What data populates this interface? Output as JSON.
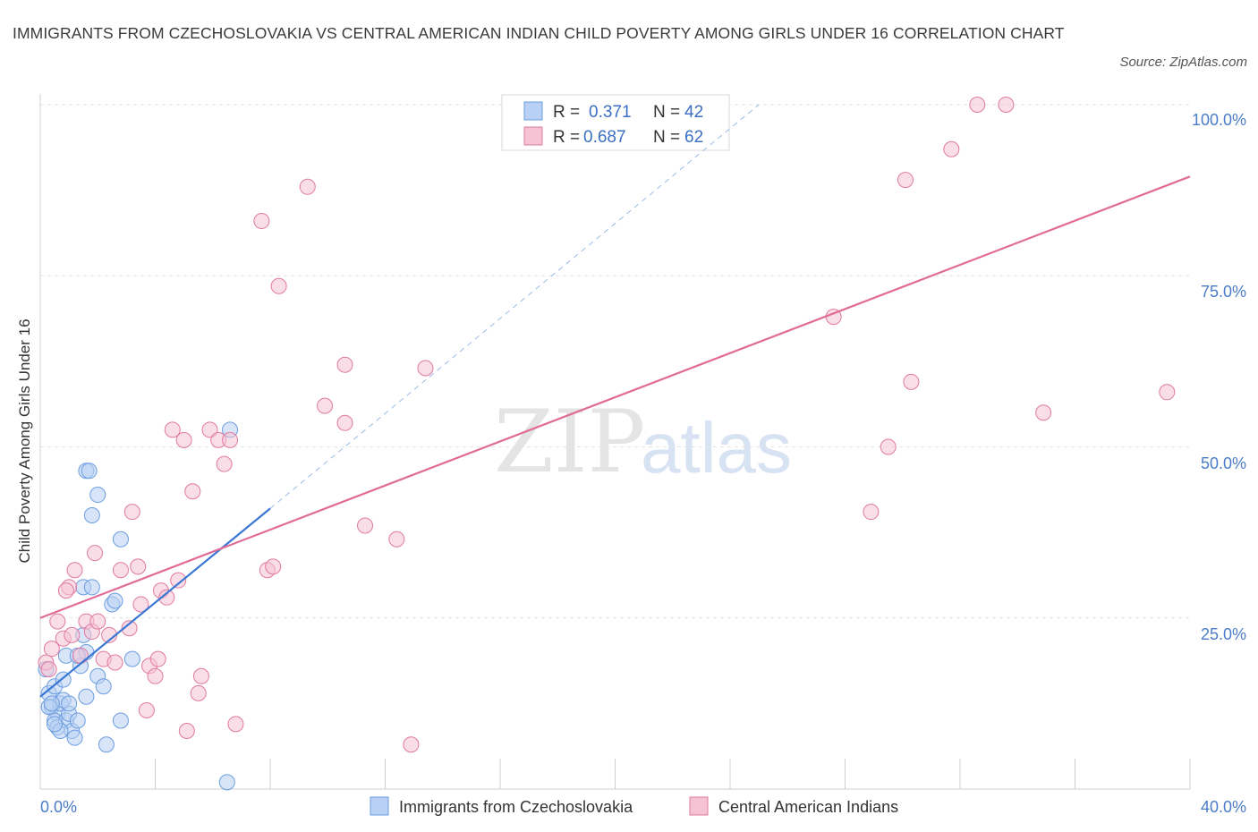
{
  "chart_data": {
    "type": "scatter",
    "title": "IMMIGRANTS FROM CZECHOSLOVAKIA VS CENTRAL AMERICAN INDIAN CHILD POVERTY AMONG GIRLS UNDER 16 CORRELATION CHART",
    "source": "Source: ZipAtlas.com",
    "ylabel": "Child Poverty Among Girls Under 16",
    "x_tick_labels": [
      "0.0%",
      "40.0%"
    ],
    "y_tick_labels": [
      "100.0%",
      "75.0%",
      "50.0%",
      "25.0%"
    ],
    "xlim": [
      0,
      40
    ],
    "ylim": [
      0,
      100
    ],
    "grid": true,
    "legend_placement": "top-center",
    "watermark": {
      "zip": "ZIP",
      "atlas": "atlas"
    },
    "legend": {
      "r_label": "R =",
      "n_label": "N =",
      "entries": [
        {
          "r": "0.371",
          "n": "42"
        },
        {
          "r": "0.687",
          "n": "62"
        }
      ]
    },
    "series": [
      {
        "name": "Immigrants from Czechoslovakia",
        "color": "#6b9de0",
        "fill": "#b8d0f3",
        "trend_line": {
          "x0": 0,
          "y0": 13.5,
          "x1": 8.0,
          "y1": 41.0,
          "dash_x1": 25,
          "dash_y1": 100
        },
        "points": [
          [
            0.2,
            17.5
          ],
          [
            0.3,
            14.0
          ],
          [
            0.4,
            12.0
          ],
          [
            0.5,
            15.0
          ],
          [
            0.6,
            11.0
          ],
          [
            0.7,
            12.5
          ],
          [
            0.8,
            16.0
          ],
          [
            0.5,
            10.0
          ],
          [
            0.6,
            9.0
          ],
          [
            0.9,
            10.0
          ],
          [
            1.0,
            11.0
          ],
          [
            0.8,
            13.0
          ],
          [
            0.9,
            19.5
          ],
          [
            1.1,
            8.5
          ],
          [
            1.2,
            7.5
          ],
          [
            1.3,
            10.0
          ],
          [
            1.4,
            18.0
          ],
          [
            1.5,
            22.5
          ],
          [
            1.6,
            20.0
          ],
          [
            1.5,
            29.5
          ],
          [
            1.8,
            29.5
          ],
          [
            1.6,
            46.5
          ],
          [
            1.7,
            46.5
          ],
          [
            1.8,
            40.0
          ],
          [
            2.0,
            43.0
          ],
          [
            2.0,
            16.5
          ],
          [
            2.2,
            15.0
          ],
          [
            1.6,
            13.5
          ],
          [
            2.3,
            6.5
          ],
          [
            2.5,
            27.0
          ],
          [
            2.6,
            27.5
          ],
          [
            2.8,
            36.5
          ],
          [
            2.8,
            10.0
          ],
          [
            3.2,
            19.0
          ],
          [
            6.5,
            1.0
          ],
          [
            6.6,
            52.5
          ],
          [
            0.3,
            12.0
          ],
          [
            0.7,
            8.5
          ],
          [
            1.0,
            12.5
          ],
          [
            0.4,
            12.5
          ],
          [
            1.3,
            19.5
          ],
          [
            0.5,
            9.5
          ]
        ]
      },
      {
        "name": "Central American Indians",
        "color": "#e07aa0",
        "fill": "#f6c3d4",
        "trend_line": {
          "x0": 0,
          "y0": 25.0,
          "x1": 40,
          "y1": 89.5
        },
        "points": [
          [
            0.2,
            18.5
          ],
          [
            0.3,
            17.5
          ],
          [
            0.4,
            20.5
          ],
          [
            0.6,
            24.5
          ],
          [
            0.8,
            22.0
          ],
          [
            1.0,
            29.5
          ],
          [
            1.1,
            22.5
          ],
          [
            1.4,
            19.5
          ],
          [
            1.6,
            24.5
          ],
          [
            1.8,
            23.0
          ],
          [
            1.9,
            34.5
          ],
          [
            2.0,
            24.5
          ],
          [
            2.2,
            19.0
          ],
          [
            2.4,
            22.5
          ],
          [
            2.6,
            18.5
          ],
          [
            2.8,
            32.0
          ],
          [
            3.1,
            23.5
          ],
          [
            3.2,
            40.5
          ],
          [
            3.4,
            32.5
          ],
          [
            3.5,
            27.0
          ],
          [
            3.7,
            11.5
          ],
          [
            3.8,
            18.0
          ],
          [
            4.0,
            16.5
          ],
          [
            4.1,
            19.0
          ],
          [
            4.2,
            29.0
          ],
          [
            4.4,
            28.0
          ],
          [
            4.6,
            52.5
          ],
          [
            4.8,
            30.5
          ],
          [
            5.0,
            51.0
          ],
          [
            5.1,
            8.5
          ],
          [
            5.3,
            43.5
          ],
          [
            5.5,
            14.0
          ],
          [
            5.6,
            16.5
          ],
          [
            5.9,
            52.5
          ],
          [
            6.2,
            51.0
          ],
          [
            6.4,
            47.5
          ],
          [
            6.6,
            51.0
          ],
          [
            6.8,
            9.5
          ],
          [
            7.7,
            83.0
          ],
          [
            7.9,
            32.0
          ],
          [
            8.1,
            32.5
          ],
          [
            8.3,
            73.5
          ],
          [
            9.3,
            88.0
          ],
          [
            9.9,
            56.0
          ],
          [
            10.6,
            53.5
          ],
          [
            10.6,
            62.0
          ],
          [
            11.3,
            38.5
          ],
          [
            12.4,
            36.5
          ],
          [
            12.9,
            6.5
          ],
          [
            13.4,
            61.5
          ],
          [
            27.6,
            69.0
          ],
          [
            28.9,
            40.5
          ],
          [
            29.5,
            50.0
          ],
          [
            30.1,
            89.0
          ],
          [
            30.3,
            59.5
          ],
          [
            31.7,
            93.5
          ],
          [
            32.6,
            100.0
          ],
          [
            33.6,
            100.0
          ],
          [
            34.9,
            55.0
          ],
          [
            39.2,
            58.0
          ],
          [
            1.2,
            32.0
          ],
          [
            0.9,
            29.0
          ]
        ]
      }
    ]
  }
}
